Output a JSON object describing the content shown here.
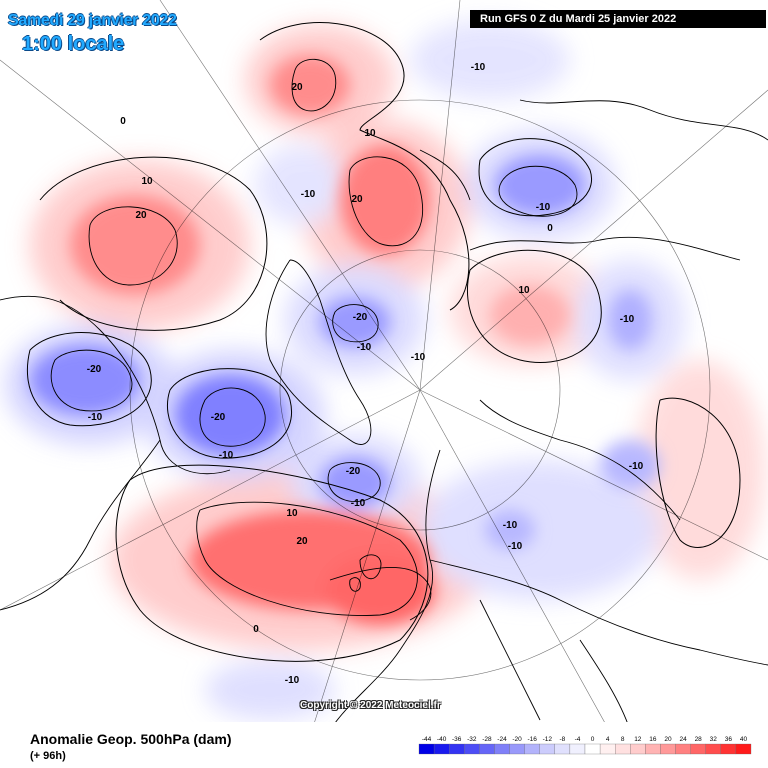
{
  "header": {
    "date": "Samedi 29 janvier 2022",
    "time": "1:00 locale",
    "run": "Run GFS 0 Z du Mardi 25 janvier 2022"
  },
  "copyright": "Copyright © 2022 Meteociel.fr",
  "caption": {
    "title": "Anomalie Geop. 500hPa (dam)",
    "subtitle": "(+ 96h)"
  },
  "legend": {
    "levels": [
      "-44",
      "-40",
      "-36",
      "-32",
      "-28",
      "-24",
      "-20",
      "-16",
      "-12",
      "-8",
      "-4",
      "0",
      "4",
      "8",
      "12",
      "16",
      "20",
      "24",
      "28",
      "32",
      "36",
      "40"
    ],
    "colors": [
      "#0000e6",
      "#1a1aee",
      "#3333f2",
      "#4d4df5",
      "#6666f7",
      "#8080f8",
      "#9999fa",
      "#b3b3fb",
      "#ccccfc",
      "#e0e0fd",
      "#f0f0fe",
      "#ffffff",
      "#fff0f0",
      "#ffe0e0",
      "#ffcccc",
      "#ffb3b3",
      "#ff9999",
      "#ff8080",
      "#ff6666",
      "#ff4d4d",
      "#ff3333",
      "#ff1a1a"
    ]
  },
  "contour_labels": [
    "20",
    "10",
    "0",
    "-10",
    "-20"
  ],
  "colors": {
    "positive": "#ff5a5a",
    "negative": "#5a5aff",
    "header_text": "#22aaff",
    "run_box": "#000000"
  }
}
